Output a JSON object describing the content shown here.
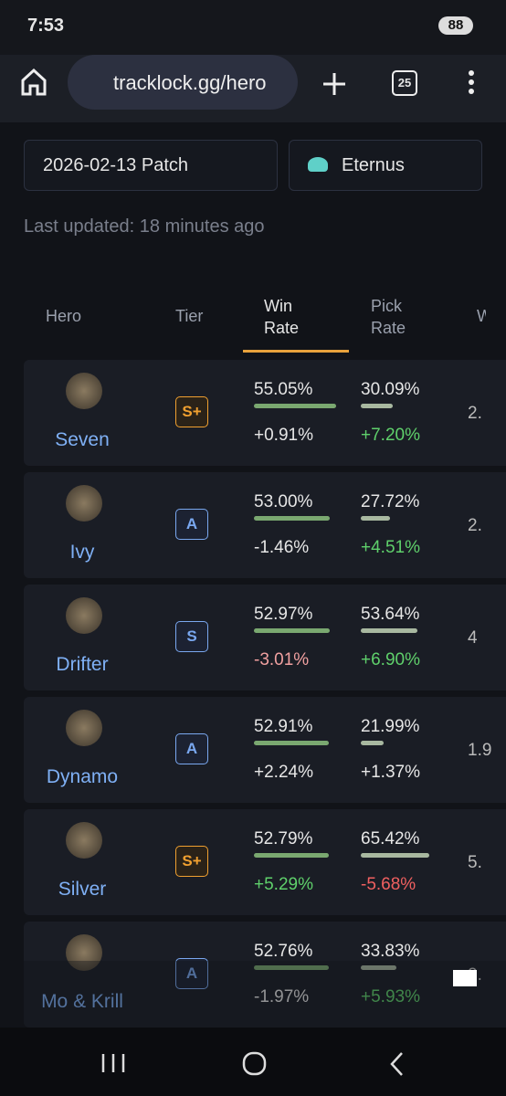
{
  "status_bar": {
    "time": "7:53",
    "battery": "88"
  },
  "browser": {
    "url": "tracklock.gg/hero",
    "tabs": "25"
  },
  "filters": {
    "patch": "2026-02-13 Patch",
    "rank": "Eternus"
  },
  "last_updated": "Last updated: 18 minutes ago",
  "table": {
    "headers": {
      "hero": "Hero",
      "tier": "Tier",
      "win_rate": "Win Rate",
      "pick_rate": "Pick Rate",
      "next": "W"
    },
    "rows": [
      {
        "hero": "Seven",
        "tier": "S+",
        "win_rate": "55.05%",
        "win_change": "+0.91%",
        "win_change_color": "#e6e6e6",
        "pick_rate": "30.09%",
        "pick_change": "+7.20%",
        "pick_change_color": "#5fd06b",
        "next": "2."
      },
      {
        "hero": "Ivy",
        "tier": "A",
        "win_rate": "53.00%",
        "win_change": "-1.46%",
        "win_change_color": "#e6e6e6",
        "pick_rate": "27.72%",
        "pick_change": "+4.51%",
        "pick_change_color": "#5fd06b",
        "next": "2."
      },
      {
        "hero": "Drifter",
        "tier": "S",
        "win_rate": "52.97%",
        "win_change": "-3.01%",
        "win_change_color": "#f0a0a0",
        "pick_rate": "53.64%",
        "pick_change": "+6.90%",
        "pick_change_color": "#5fd06b",
        "next": "4"
      },
      {
        "hero": "Dynamo",
        "tier": "A",
        "win_rate": "52.91%",
        "win_change": "+2.24%",
        "win_change_color": "#e6e6e6",
        "pick_rate": "21.99%",
        "pick_change": "+1.37%",
        "pick_change_color": "#e6e6e6",
        "next": "1.9"
      },
      {
        "hero": "Silver",
        "tier": "S+",
        "win_rate": "52.79%",
        "win_change": "+5.29%",
        "win_change_color": "#5fd06b",
        "pick_rate": "65.42%",
        "pick_change": "-5.68%",
        "pick_change_color": "#f06060",
        "next": "5."
      },
      {
        "hero": "Mo & Krill",
        "tier": "A",
        "win_rate": "52.76%",
        "win_change": "-1.97%",
        "win_change_color": "#e6e6e6",
        "pick_rate": "33.83%",
        "pick_change": "+5.93%",
        "pick_change_color": "#5fd06b",
        "next": "2."
      }
    ]
  }
}
